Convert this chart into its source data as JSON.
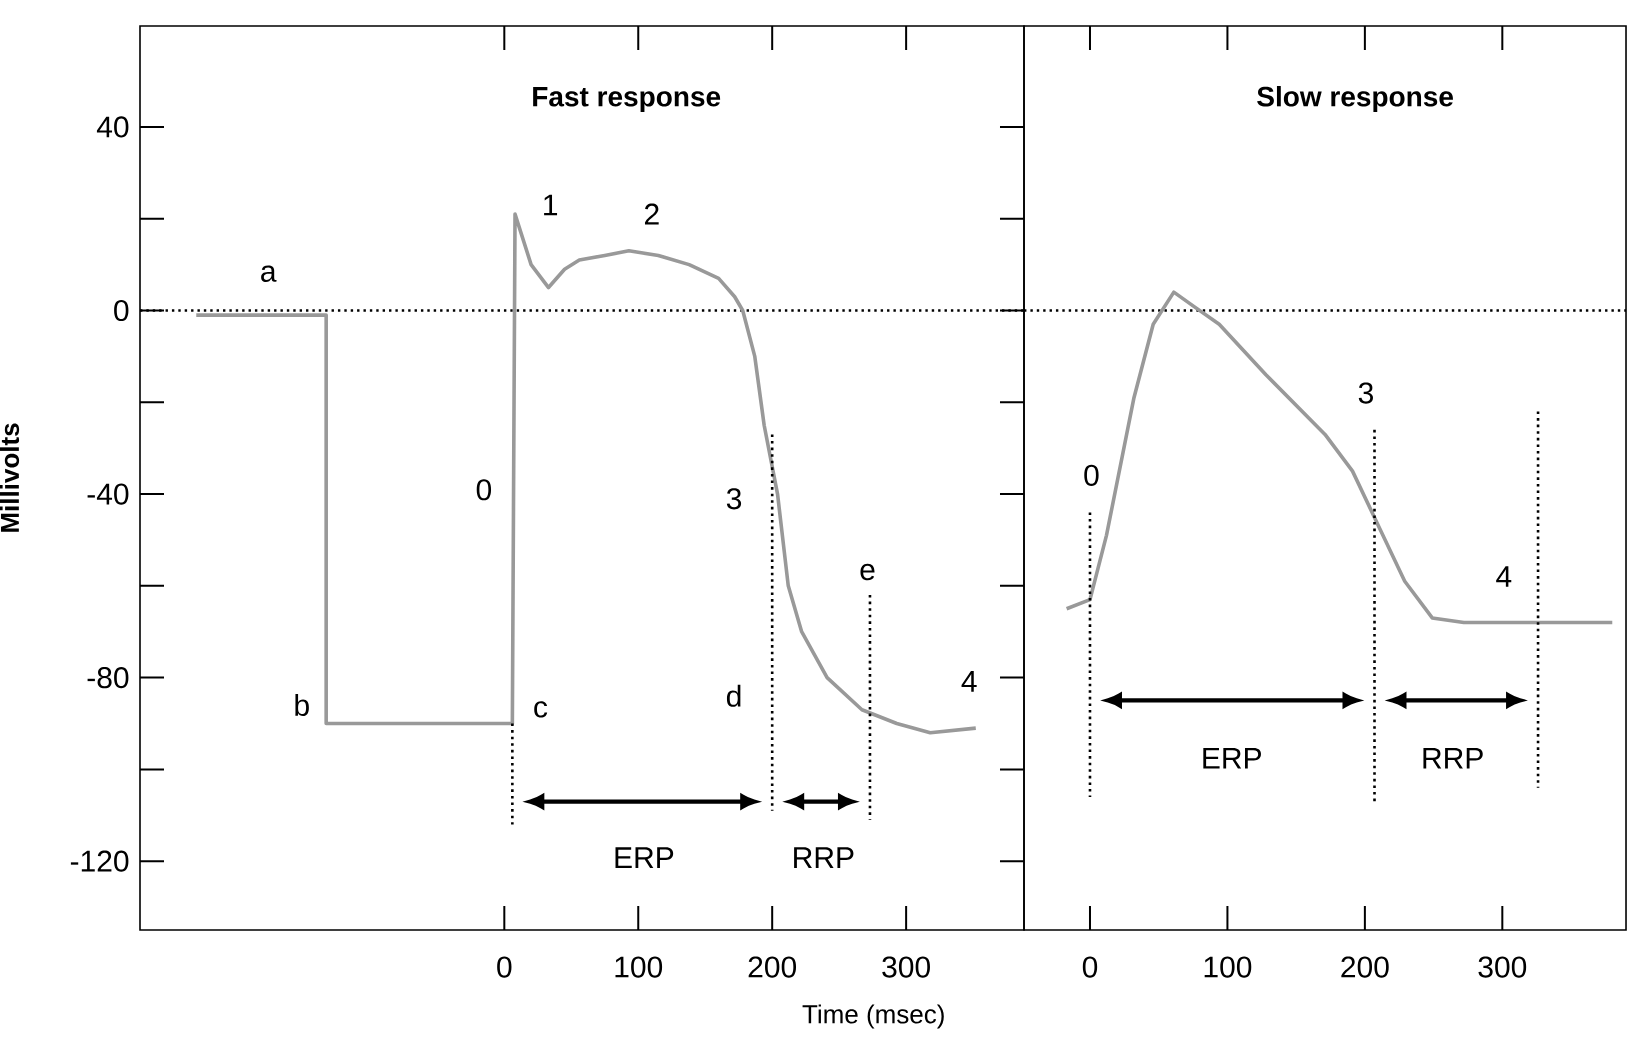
{
  "chart_data": [
    {
      "type": "line",
      "title": "Fast response",
      "xlabel": "Time (msec)",
      "ylabel": "Millivolts",
      "xlim": [
        -272,
        388
      ],
      "ylim": [
        -135,
        62
      ],
      "xticks": [
        0,
        100,
        200,
        300
      ],
      "yticks": [
        40,
        {
          "value": 20,
          "label": null
        },
        0,
        {
          "value": -20,
          "label": null
        },
        -40,
        {
          "value": -60,
          "label": null
        },
        -80,
        {
          "value": -100,
          "label": null
        },
        -120
      ],
      "series": [
        {
          "color": "#999999",
          "x": [
            -230,
            -133,
            -133,
            6,
            8,
            20,
            33,
            45,
            56,
            75,
            93,
            115,
            138,
            160,
            172,
            178,
            187,
            194,
            204,
            212,
            222,
            241,
            267,
            293,
            318,
            352
          ],
          "values": [
            -1,
            -1,
            -90,
            -90,
            21,
            10,
            5,
            9,
            11,
            12,
            13,
            12,
            10,
            7,
            3,
            0,
            -10,
            -25,
            -40,
            -60,
            -70,
            -80,
            -87,
            -90,
            -92,
            -91
          ]
        },
        {
          "color": "#000000",
          "line_style": "dotted",
          "x": [
            6,
            6
          ],
          "values": [
            -90,
            -112
          ]
        },
        {
          "color": "#000000",
          "line_style": "dotted",
          "x": [
            200,
            200
          ],
          "values": [
            -27,
            -109
          ]
        },
        {
          "color": "#000000",
          "line_style": "dotted",
          "x": [
            273,
            273
          ],
          "values": [
            -62,
            -111
          ]
        }
      ],
      "ref_lines": [
        {
          "axis": "y",
          "value": 0,
          "line_style": "dotted",
          "color": "#000000"
        }
      ],
      "annotations": [
        "a",
        "b",
        "c",
        "d",
        "e",
        "0",
        "1",
        "2",
        "3",
        "4",
        "ERP",
        "RRP"
      ]
    },
    {
      "type": "line",
      "title": "Slow response",
      "tick_labels": "x",
      "xlim": [
        -48,
        390
      ],
      "ylim": [
        -135,
        62
      ],
      "xticks": [
        0,
        100,
        200,
        300
      ],
      "series": [
        {
          "color": "#999999",
          "x": [
            -17,
            0,
            12,
            32,
            46,
            61,
            75,
            94,
            128,
            171,
            191,
            210,
            229,
            249,
            272,
            322,
            380
          ],
          "values": [
            -65,
            -63,
            -49,
            -19,
            -3,
            4,
            1,
            -3,
            -14,
            -27,
            -35,
            -47,
            -59,
            -67,
            -68,
            -68,
            -68
          ]
        },
        {
          "color": "#000000",
          "line_style": "dotted",
          "x": [
            0,
            0
          ],
          "values": [
            -44,
            -106
          ]
        },
        {
          "color": "#000000",
          "line_style": "dotted",
          "x": [
            207,
            207
          ],
          "values": [
            -26,
            -107
          ]
        },
        {
          "color": "#000000",
          "line_style": "dotted",
          "x": [
            326,
            326
          ],
          "values": [
            -22,
            -104
          ]
        }
      ],
      "ref_lines": [
        {
          "axis": "y",
          "value": 0,
          "line_style": "dotted",
          "color": "#000000"
        }
      ],
      "annotations": [
        "0",
        "3",
        "4",
        "ERP",
        "RRP"
      ]
    }
  ]
}
